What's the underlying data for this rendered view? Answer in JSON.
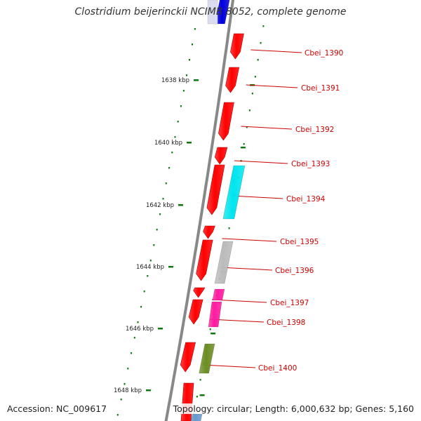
{
  "title": "Clostridium beijerinckii NCIMB 8052, complete genome",
  "footer": {
    "accession": "Accession: NC_009617",
    "summary": "Topology: circular; Length: 6,000,632 bp; Genes: 5,160"
  },
  "colors": {
    "backbone": "#888888",
    "tick": "#117711",
    "gene_label": "#cc0000",
    "label_line": "#cc0000"
  },
  "ticks": [
    {
      "label": "1638 kbp"
    },
    {
      "label": "1640 kbp"
    },
    {
      "label": "1642 kbp"
    },
    {
      "label": "1644 kbp"
    },
    {
      "label": "1646 kbp"
    },
    {
      "label": "1648 kbp"
    }
  ],
  "genes": [
    {
      "id": "Cbei_1390",
      "label": "Cbei_1390",
      "color": "#ff0000"
    },
    {
      "id": "Cbei_1391",
      "label": "Cbei_1391",
      "color": "#ff0000"
    },
    {
      "id": "Cbei_1392",
      "label": "Cbei_1392",
      "color": "#ff0000"
    },
    {
      "id": "Cbei_1393",
      "label": "Cbei_1393",
      "color": "#ff0000"
    },
    {
      "id": "Cbei_1394",
      "label": "Cbei_1394",
      "color": "#ff0000"
    },
    {
      "id": "Cbei_1395",
      "label": "Cbei_1395",
      "color": "#ff0000"
    },
    {
      "id": "Cbei_1396",
      "label": "Cbei_1396",
      "color": "#ff0000"
    },
    {
      "id": "Cbei_1397",
      "label": "Cbei_1397",
      "color": "#ff0000"
    },
    {
      "id": "Cbei_1398",
      "label": "Cbei_1398",
      "color": "#ff0000"
    },
    {
      "id": "Cbei_1400",
      "label": "Cbei_1400",
      "color": "#ff0000"
    }
  ],
  "features": [
    {
      "id": "blue-feature",
      "color": "#0000dd"
    },
    {
      "id": "cyan-feature",
      "color": "#00e5ee"
    },
    {
      "id": "gray-feature",
      "color": "#bbbbbb"
    },
    {
      "id": "magenta-feature",
      "color": "#ff1aa0"
    },
    {
      "id": "olive-feature",
      "color": "#6b8e23"
    },
    {
      "id": "lightblue-feature",
      "color": "#6699cc"
    }
  ]
}
